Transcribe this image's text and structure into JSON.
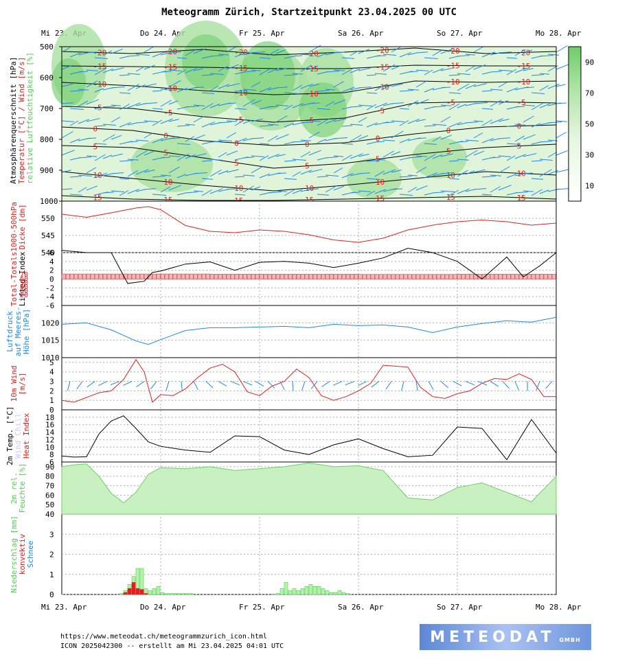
{
  "title": "Meteogramm Zürich, Startzeitpunkt 23.04.2025 00 UTC",
  "footer": {
    "url": "https://www.meteodat.ch/meteogrammzurich_icon.html",
    "run": "ICON 2025042300 -- erstellt am Mi 23.04.2025 04:01 UTC"
  },
  "logo": {
    "text": "METEODAT",
    "suffix": "GMBH"
  },
  "colors": {
    "red": "#e02020",
    "blue": "#1e88e8",
    "green": "#55cc55",
    "lightgreen": "#c8f0c0",
    "black": "#000000"
  },
  "chart_data": [
    {
      "type": "heatmap",
      "days": [
        "Mi 23. Apr",
        "Do 24. Apr",
        "Fr 25. Apr",
        "Sa 26. Apr",
        "So 27. Apr",
        "Mo 28. Apr"
      ],
      "ylabel": [
        "Atmosphärenquerschnitt [hPa]",
        "Temperatur [°C] / Wind [m/s]",
        "relative Luftfeuchtigkeit [%]"
      ],
      "y_ticks": [
        500,
        600,
        700,
        800,
        900,
        1000
      ],
      "ylim": [
        500,
        1000
      ],
      "colorbar_ticks": [
        90,
        70,
        50,
        30,
        10
      ],
      "isotherm_labels": [
        "-20",
        "-15",
        "-10",
        "-5",
        "0",
        "5",
        "10",
        "15"
      ]
    },
    {
      "type": "line",
      "ylabel": [
        "1000-500hPa",
        "Dicke [dm]"
      ],
      "y_ticks": [
        540,
        545,
        550
      ],
      "ylim": [
        540,
        555
      ],
      "series": [
        {
          "color": "#e02020",
          "x": [
            0,
            6,
            12,
            18,
            21,
            24,
            30,
            36,
            42,
            48,
            54,
            60,
            66,
            72,
            78,
            84,
            90,
            96,
            102,
            108,
            114,
            120
          ],
          "values": [
            551.2,
            550.3,
            551.6,
            553,
            553.4,
            552.5,
            547.9,
            546.2,
            545.8,
            546.6,
            546.2,
            545.2,
            543.7,
            543.0,
            544.2,
            546.6,
            548.0,
            549.0,
            549.5,
            549.0,
            548.0,
            548.6
          ]
        }
      ]
    },
    {
      "type": "bar",
      "ylabel": [
        "Total-Totals",
        "Lifted Index"
      ],
      "bar_scale_ticks": [
        "20",
        "30",
        "40",
        "50",
        "60",
        "70"
      ],
      "y_ticks": [
        -6,
        -4,
        -2,
        0,
        2,
        4,
        6
      ],
      "ylim": [
        6,
        -6
      ],
      "series": [
        {
          "name": "Total-Totals",
          "color": "#e02020",
          "x": [
            0,
            6,
            12,
            18,
            24,
            30,
            36,
            42,
            48,
            54,
            60,
            66,
            72,
            78,
            84,
            90,
            96,
            102,
            108,
            114,
            120
          ],
          "values": [
            46,
            46,
            46,
            46,
            46,
            46,
            45,
            45,
            45,
            45,
            45,
            45,
            44,
            44,
            44,
            44,
            45,
            45,
            45,
            45,
            45
          ]
        },
        {
          "name": "Lifted Index",
          "color": "#000000",
          "x": [
            0,
            6,
            12,
            16,
            20,
            22,
            24,
            30,
            36,
            42,
            48,
            54,
            60,
            66,
            72,
            78,
            84,
            90,
            96,
            102,
            108,
            112,
            116,
            120
          ],
          "values": [
            6.5,
            6,
            6,
            -1,
            -0.5,
            1.5,
            1.8,
            3.4,
            3.9,
            2.0,
            3.8,
            4.0,
            3.6,
            2.6,
            3.6,
            4.8,
            7,
            6,
            4,
            0,
            5,
            0.5,
            3,
            6
          ]
        }
      ]
    },
    {
      "type": "line",
      "ylabel": [
        "Luftdruck",
        "auf Meeres-",
        "Höhe [hPa]"
      ],
      "y_ticks": [
        1010,
        1015,
        1020
      ],
      "ylim": [
        1010,
        1025
      ],
      "series": [
        {
          "color": "#1e88e8",
          "x": [
            0,
            6,
            12,
            18,
            21,
            24,
            30,
            36,
            42,
            48,
            54,
            60,
            66,
            72,
            78,
            84,
            90,
            96,
            102,
            108,
            114,
            120
          ],
          "values": [
            1019.6,
            1020.0,
            1018.0,
            1014.8,
            1013.8,
            1015.2,
            1017.8,
            1018.6,
            1018.6,
            1018.8,
            1019.0,
            1018.6,
            1019.6,
            1019.2,
            1019.4,
            1018.8,
            1017.2,
            1018.8,
            1019.8,
            1020.6,
            1020.2,
            1021.6
          ]
        }
      ]
    },
    {
      "type": "line",
      "ylabel": [
        "10m Wind",
        "[m/s]"
      ],
      "y_ticks": [
        0,
        1,
        2,
        3,
        4,
        5
      ],
      "ylim": [
        0,
        5.5
      ],
      "series": [
        {
          "color": "#e02020",
          "x": [
            0,
            3,
            6,
            9,
            12,
            15,
            18,
            20,
            22,
            24,
            27,
            30,
            33,
            36,
            39,
            42,
            45,
            48,
            51,
            54,
            57,
            60,
            63,
            66,
            69,
            72,
            75,
            78,
            81,
            84,
            87,
            90,
            93,
            96,
            99,
            102,
            105,
            108,
            111,
            114,
            117,
            120
          ],
          "values": [
            1.0,
            0.8,
            1.3,
            1.8,
            2.0,
            3.2,
            5.3,
            4.0,
            0.8,
            1.6,
            1.5,
            2.2,
            3.4,
            4.4,
            4.8,
            4.0,
            1.9,
            1.5,
            2.5,
            3.0,
            4.3,
            3.4,
            1.5,
            1.0,
            1.4,
            2.0,
            2.8,
            4.7,
            4.6,
            4.5,
            2.4,
            1.4,
            1.2,
            1.7,
            2.0,
            2.8,
            3.3,
            3.2,
            3.8,
            3.2,
            1.4,
            1.4
          ]
        }
      ],
      "arrows": "wind direction"
    },
    {
      "type": "line",
      "ylabel": [
        "2m Temp. [°C]",
        "Wind Chill",
        "Heat Index"
      ],
      "y_ticks": [
        6,
        8,
        10,
        12,
        14,
        16,
        18
      ],
      "ylim": [
        6,
        20
      ],
      "series": [
        {
          "color": "#000000",
          "x": [
            0,
            3,
            6,
            9,
            12,
            15,
            18,
            21,
            24,
            30,
            36,
            42,
            48,
            54,
            60,
            66,
            72,
            78,
            84,
            90,
            96,
            102,
            108,
            114,
            120
          ],
          "values": [
            7.6,
            7.3,
            7.4,
            13.5,
            17.0,
            18.4,
            15.0,
            11.4,
            10.2,
            9.2,
            8.6,
            13.0,
            12.8,
            9.2,
            8.0,
            10.6,
            12.2,
            9.6,
            7.4,
            7.8,
            15.4,
            15.0,
            6.6,
            17.4,
            8.4
          ]
        }
      ]
    },
    {
      "type": "area",
      "ylabel": [
        "2m rel.",
        "Feuchte [%]"
      ],
      "y_ticks": [
        40,
        50,
        60,
        70,
        80,
        90
      ],
      "ylim": [
        40,
        95
      ],
      "series": [
        {
          "color": "#c8f0c0",
          "x": [
            0,
            3,
            6,
            9,
            12,
            15,
            18,
            21,
            24,
            30,
            36,
            42,
            48,
            54,
            60,
            66,
            72,
            78,
            84,
            90,
            96,
            102,
            108,
            114,
            120
          ],
          "values": [
            90.0,
            92.0,
            93.0,
            80.0,
            62.0,
            52.0,
            63.0,
            82.0,
            89.0,
            88.0,
            90.0,
            86.0,
            88.0,
            90.0,
            94.0,
            90.0,
            91.0,
            86.0,
            57.0,
            55.0,
            68.0,
            73.0,
            63.0,
            53.0,
            80.0
          ]
        }
      ]
    },
    {
      "type": "bar",
      "ylabel": [
        "Niederschlag [mm]",
        "konvektiv",
        "Schnee"
      ],
      "y_ticks": [
        0,
        1,
        2,
        3
      ],
      "ylim": [
        0,
        4
      ],
      "series": [
        {
          "name": "Niederschlag",
          "color": "#55cc55",
          "x": [
            14,
            15,
            16,
            17,
            18,
            19,
            20,
            21,
            22,
            23,
            24,
            25,
            26,
            27,
            28,
            29,
            30,
            31,
            51,
            52,
            53,
            54,
            55,
            56,
            57,
            58,
            59,
            60,
            61,
            62,
            63,
            64,
            65,
            66,
            67,
            68,
            69
          ],
          "values": [
            0.05,
            0.2,
            0.5,
            0.9,
            1.3,
            1.3,
            0.3,
            0.2,
            0.3,
            0.4,
            0.1,
            0.05,
            0.05,
            0.05,
            0.05,
            0.05,
            0.05,
            0.05,
            0.02,
            0.05,
            0.3,
            0.6,
            0.2,
            0.3,
            0.2,
            0.3,
            0.4,
            0.5,
            0.4,
            0.4,
            0.3,
            0.2,
            0.1,
            0.1,
            0.2,
            0.1,
            0.05
          ]
        },
        {
          "name": "konvektiv",
          "color": "#e02020",
          "x": [
            15,
            16,
            17,
            18,
            19,
            20
          ],
          "values": [
            0.1,
            0.3,
            0.6,
            0.3,
            0.25,
            0.05
          ]
        }
      ]
    }
  ]
}
